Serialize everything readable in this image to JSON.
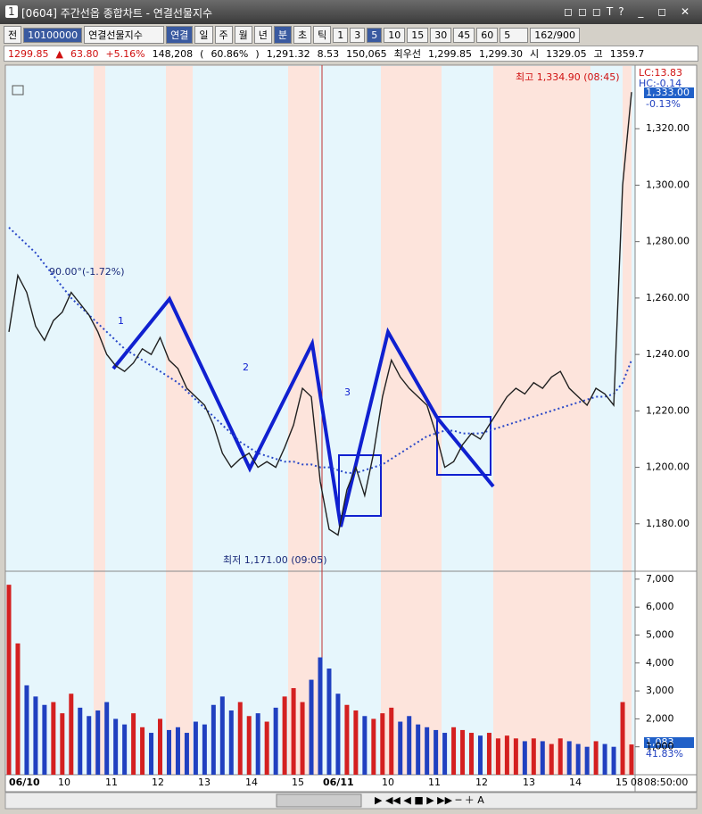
{
  "window": {
    "number": "1",
    "title": "[0604] 주간선옵 종합차트 - 연결선물지수"
  },
  "toolbar": {
    "prev": "전",
    "code": "10100000",
    "name": "연결선물지수",
    "buttons": [
      "연결",
      "일",
      "주",
      "월",
      "년",
      "분",
      "초",
      "틱",
      "1",
      "3",
      "5",
      "10",
      "15",
      "30",
      "45",
      "60"
    ],
    "interval": "5",
    "count": "162/900"
  },
  "infobar": [
    "1299.85",
    "▲",
    "63.80",
    "+5.16%",
    "148,208",
    "(",
    "60.86%",
    ")",
    "1,291.32",
    "8.53",
    "150,065",
    "최우선",
    "1,299.85",
    "1,299.30",
    "시",
    "1329.05",
    "고",
    "1359.7"
  ],
  "price_chart": {
    "type": "line",
    "color": "#202020",
    "ma_color": "#2a48c8",
    "ylim": [
      1163.8,
      1341.9
    ],
    "yticks": [
      {
        "value": 1180,
        "label": "1,180.00"
      },
      {
        "value": 1200,
        "label": "1,200.00"
      },
      {
        "value": 1220,
        "label": "1,220.00"
      },
      {
        "value": 1240,
        "label": "1,240.00"
      },
      {
        "value": 1260,
        "label": "1,260.00"
      },
      {
        "value": 1280,
        "label": "1,280.00"
      },
      {
        "value": 1300,
        "label": "1,300.00"
      },
      {
        "value": 1320,
        "label": "1,320.00"
      }
    ],
    "values": [
      1248,
      1268,
      1262,
      1250,
      1245,
      1252,
      1255,
      1262,
      1258,
      1254,
      1248,
      1240,
      1236,
      1234,
      1237,
      1242,
      1240,
      1246,
      1238,
      1235,
      1228,
      1225,
      1222,
      1215,
      1205,
      1200,
      1203,
      1205,
      1200,
      1202,
      1200,
      1207,
      1215,
      1228,
      1225,
      1195,
      1178,
      1176,
      1192,
      1200,
      1190,
      1205,
      1225,
      1238,
      1232,
      1228,
      1225,
      1222,
      1212,
      1200,
      1202,
      1208,
      1212,
      1210,
      1215,
      1220,
      1225,
      1228,
      1226,
      1230,
      1228,
      1232,
      1234,
      1228,
      1225,
      1222,
      1228,
      1226,
      1222,
      1300,
      1333
    ],
    "ma": [
      1285,
      1282,
      1279,
      1276,
      1272,
      1268,
      1264,
      1260,
      1257,
      1254,
      1251,
      1248,
      1245,
      1242,
      1240,
      1238,
      1236,
      1234,
      1232,
      1230,
      1227,
      1224,
      1221,
      1218,
      1215,
      1212,
      1209,
      1207,
      1205,
      1204,
      1203,
      1202,
      1202,
      1201,
      1201,
      1200,
      1200,
      1199,
      1198,
      1198,
      1199,
      1200,
      1201,
      1203,
      1205,
      1207,
      1209,
      1211,
      1212,
      1213,
      1213,
      1212,
      1212,
      1212,
      1213,
      1214,
      1215,
      1216,
      1217,
      1218,
      1219,
      1220,
      1221,
      1222,
      1223,
      1224,
      1225,
      1225,
      1226,
      1230,
      1238
    ],
    "high_label": "최고 1,334.90 (08:45)",
    "low_label": "최저 1,171.00 (09:05)",
    "angle_label": "90.00°(-1.72%)",
    "lc": "LC:13.83",
    "hc": "HC:-0.14",
    "last": "1,333.00",
    "last_change": "-0.13%"
  },
  "volume_chart": {
    "type": "bar",
    "up_color": "#d42020",
    "down_color": "#2040c0",
    "ylim": [
      0,
      7220
    ],
    "yticks": [
      {
        "value": 1000,
        "label": "1,000"
      },
      {
        "value": 2000,
        "label": "2,000"
      },
      {
        "value": 3000,
        "label": "3,000"
      },
      {
        "value": 4000,
        "label": "4,000"
      },
      {
        "value": 5000,
        "label": "5,000"
      },
      {
        "value": 6000,
        "label": "6,000"
      },
      {
        "value": 7000,
        "label": "7,000"
      }
    ],
    "values": [
      6800,
      4700,
      3200,
      2800,
      2500,
      2600,
      2200,
      2900,
      2400,
      2100,
      2300,
      2600,
      2000,
      1800,
      2200,
      1700,
      1500,
      2000,
      1600,
      1700,
      1500,
      1900,
      1800,
      2500,
      2800,
      2300,
      2600,
      2100,
      2200,
      1900,
      2400,
      2800,
      3100,
      2600,
      3400,
      4200,
      3800,
      2900,
      2500,
      2300,
      2100,
      2000,
      2200,
      2400,
      1900,
      2100,
      1800,
      1700,
      1600,
      1500,
      1700,
      1600,
      1500,
      1400,
      1500,
      1300,
      1400,
      1300,
      1200,
      1300,
      1200,
      1100,
      1300,
      1200,
      1100,
      1000,
      1200,
      1100,
      1000,
      2600,
      1083
    ],
    "last": "1,083",
    "ratio": "41.83%"
  },
  "xlabels": [
    "06/10",
    "10",
    "11",
    "12",
    "13",
    "14",
    "15",
    "06/11",
    "10",
    "11",
    "12",
    "13",
    "14",
    "15",
    "08"
  ],
  "time": "08:50:00",
  "drawing_digits": [
    "1",
    "2",
    "3"
  ]
}
